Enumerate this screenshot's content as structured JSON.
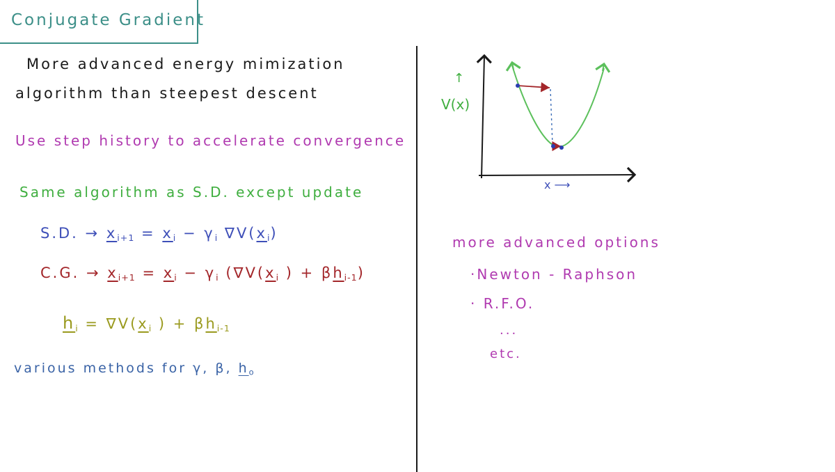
{
  "title": "Conjugate Gradient",
  "intro_line1": "More advanced energy mimization",
  "intro_line2": "algorithm than steepest descent",
  "step_history": "Use step history to accelerate convergence",
  "same_algorithm": "Same algorithm as S.D. except update",
  "sd_equation": {
    "label": "S.D.",
    "arrow": "→",
    "x": "x",
    "sub_next": "i+1",
    "eq": "=",
    "xi": "x",
    "sub_i": "i",
    "minus": "−",
    "gamma": "γ",
    "grad": "∇V(",
    "close": ")"
  },
  "cg_equation": {
    "label": "C.G.",
    "arrow": "→",
    "x": "x",
    "sub_next": "i+1",
    "eq": "=",
    "xi": "x",
    "sub_i": "i",
    "minus": "−",
    "gamma": "γ",
    "grad_open": "(∇V(",
    "plus_beta": ") + β",
    "h": "h",
    "sub_prev": "i-1",
    "close": ")"
  },
  "h_equation": {
    "h": "h",
    "sub_i": "i",
    "eq": "= ∇V(",
    "x": "x",
    "sub_x": "i",
    "plus_beta": ") + β",
    "h2": "h",
    "sub_prev": "i-1"
  },
  "various_methods": {
    "text": "various methods for γ, β,",
    "h": "h",
    "sub": "o"
  },
  "graph": {
    "y_label": "V(x)",
    "y_arrow": "↑",
    "x_label": "x ⟶"
  },
  "options": {
    "heading": "more advanced options",
    "items": [
      "·Newton - Raphson",
      "· R.F.O."
    ],
    "ellipsis": "...",
    "etc": "etc."
  },
  "colors": {
    "teal": "#3c8f88",
    "black": "#1a1a1a",
    "purple": "#b03ab0",
    "green": "#3fae3f",
    "blue": "#3e4fb8",
    "red": "#a3262a",
    "olive": "#9a9a1e",
    "steel": "#3a63a6",
    "curve": "#5cc05c"
  }
}
